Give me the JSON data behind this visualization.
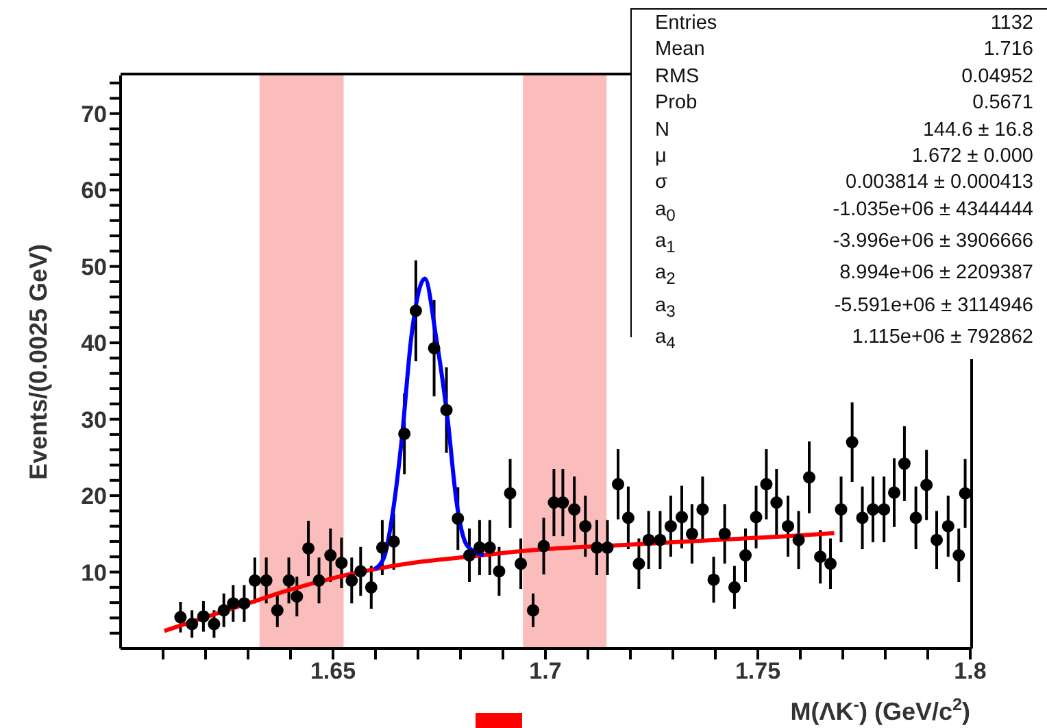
{
  "chart_data": {
    "type": "scatter",
    "xlabel": "M(ΛK$^{-}$) (GeV/c$^{2}$)",
    "ylabel": "Events/(0.0025 GeV)",
    "xlim": [
      1.6,
      1.8
    ],
    "ylim": [
      0,
      75
    ],
    "xticks": [
      {
        "value": 1.61,
        "label": null
      },
      {
        "value": 1.62,
        "label": null
      },
      {
        "value": 1.63,
        "label": null
      },
      {
        "value": 1.64,
        "label": null
      },
      1.65,
      {
        "value": 1.66,
        "label": null
      },
      {
        "value": 1.67,
        "label": null
      },
      {
        "value": 1.68,
        "label": null
      },
      {
        "value": 1.69,
        "label": null
      },
      1.7,
      {
        "value": 1.71,
        "label": null
      },
      {
        "value": 1.72,
        "label": null
      },
      {
        "value": 1.73,
        "label": null
      },
      {
        "value": 1.74,
        "label": null
      },
      1.75,
      {
        "value": 1.76,
        "label": null
      },
      {
        "value": 1.77,
        "label": null
      },
      {
        "value": 1.78,
        "label": null
      },
      {
        "value": 1.79,
        "label": null
      },
      1.8
    ],
    "yticks": [
      {
        "value": 2,
        "label": null
      },
      {
        "value": 4,
        "label": null
      },
      {
        "value": 6,
        "label": null
      },
      {
        "value": 8,
        "label": null
      },
      10,
      {
        "value": 12,
        "label": null
      },
      {
        "value": 14,
        "label": null
      },
      {
        "value": 16,
        "label": null
      },
      {
        "value": 18,
        "label": null
      },
      20,
      {
        "value": 22,
        "label": null
      },
      {
        "value": 24,
        "label": null
      },
      {
        "value": 26,
        "label": null
      },
      {
        "value": 28,
        "label": null
      },
      30,
      {
        "value": 32,
        "label": null
      },
      {
        "value": 34,
        "label": null
      },
      {
        "value": 36,
        "label": null
      },
      {
        "value": 38,
        "label": null
      },
      40,
      {
        "value": 42,
        "label": null
      },
      {
        "value": 44,
        "label": null
      },
      {
        "value": 46,
        "label": null
      },
      {
        "value": 48,
        "label": null
      },
      50,
      {
        "value": 52,
        "label": null
      },
      {
        "value": 54,
        "label": null
      },
      {
        "value": 56,
        "label": null
      },
      {
        "value": 58,
        "label": null
      },
      60,
      {
        "value": 62,
        "label": null
      },
      {
        "value": 64,
        "label": null
      },
      {
        "value": 66,
        "label": null
      },
      {
        "value": 68,
        "label": null
      },
      70,
      {
        "value": 72,
        "label": null
      },
      {
        "value": 74,
        "label": null
      }
    ],
    "line_style": "solid",
    "bands": [
      {
        "axis": "x",
        "from": 1.6327,
        "to": 1.6525,
        "color": "#fbbcbc"
      },
      {
        "axis": "x",
        "from": 1.6947,
        "to": 1.7144,
        "color": "#fbbcbc"
      }
    ],
    "series": [
      {
        "color": "#000000",
        "marker": "circle",
        "x": [
          1.6141,
          1.6168,
          1.6195,
          1.622,
          1.6243,
          1.6265,
          1.6291,
          1.6316,
          1.6343,
          1.6369,
          1.6396,
          1.6415,
          1.6442,
          1.6467,
          1.6494,
          1.652,
          1.6544,
          1.6565,
          1.659,
          1.6616,
          1.6643,
          1.6668,
          1.6695,
          1.6738,
          1.6767,
          1.6794,
          1.6821,
          1.6845,
          1.6869,
          1.6891,
          1.6917,
          1.6942,
          1.6971,
          1.6996,
          1.702,
          1.7041,
          1.7068,
          1.7094,
          1.7121,
          1.7146,
          1.7171,
          1.7195,
          1.722,
          1.7243,
          1.727,
          1.7295,
          1.7321,
          1.7345,
          1.737,
          1.7396,
          1.7422,
          1.7445,
          1.7471,
          1.7496,
          1.752,
          1.7544,
          1.7571,
          1.7596,
          1.7621,
          1.7647,
          1.7671,
          1.7696,
          1.7722,
          1.7746,
          1.7771,
          1.7797,
          1.7821,
          1.7845,
          1.7872,
          1.7897,
          1.7921,
          1.7948,
          1.7973,
          1.7988
        ],
        "values": [
          4.1,
          3.2,
          4.2,
          3.2,
          5.0,
          5.9,
          5.9,
          8.9,
          8.9,
          5.0,
          8.9,
          6.8,
          13.1,
          8.9,
          12.2,
          11.2,
          8.9,
          10.1,
          8.0,
          13.2,
          14.0,
          28.1,
          44.2,
          39.3,
          31.2,
          17.0,
          12.2,
          13.2,
          13.2,
          10.1,
          20.3,
          11.1,
          5.0,
          13.4,
          19.1,
          19.1,
          18.2,
          16.0,
          13.2,
          13.2,
          21.5,
          17.1,
          11.1,
          14.2,
          14.2,
          16.0,
          17.2,
          15.0,
          18.2,
          9.0,
          15.0,
          8.0,
          12.2,
          17.2,
          21.5,
          19.1,
          16.0,
          14.2,
          22.4,
          12.0,
          11.1,
          18.2,
          27.0,
          17.1,
          18.2,
          18.2,
          20.4,
          24.2,
          17.1,
          21.4,
          14.2,
          16.0,
          12.2,
          20.3
        ],
        "errors": [
          2,
          1.8,
          2,
          1.8,
          2.2,
          2.4,
          2.4,
          3,
          3,
          2.2,
          3,
          2.6,
          3.6,
          3,
          3.5,
          3.3,
          3,
          3.2,
          2.8,
          3.6,
          3.7,
          5.3,
          6.6,
          6.3,
          5.6,
          4.1,
          3.5,
          3.6,
          3.6,
          3.2,
          4.5,
          3.3,
          2.2,
          3.7,
          4.4,
          4.4,
          4.3,
          4,
          3.6,
          3.6,
          4.6,
          4.1,
          3.3,
          3.8,
          3.8,
          4,
          4.1,
          3.9,
          4.3,
          3,
          3.9,
          2.8,
          3.5,
          4.1,
          4.6,
          4.4,
          4,
          3.8,
          4.7,
          3.5,
          3.3,
          4.3,
          5.2,
          4.1,
          4.3,
          4.3,
          4.5,
          4.9,
          4.1,
          4.6,
          3.8,
          4,
          3.5,
          4.5
        ]
      },
      {
        "type": "line",
        "color": "#ff0000",
        "marker": "none",
        "x": [
          1.6103,
          1.62,
          1.63,
          1.64,
          1.65,
          1.66,
          1.67,
          1.68,
          1.69,
          1.7,
          1.72,
          1.74,
          1.76,
          1.768
        ],
        "values": [
          2.3,
          4.1,
          5.9,
          7.7,
          9.2,
          10.4,
          11.3,
          11.9,
          12.5,
          13.0,
          13.6,
          14.2,
          14.8,
          15.1
        ]
      },
      {
        "type": "line",
        "color": "#0000ff",
        "marker": "none",
        "x": [
          1.6598,
          1.662,
          1.6641,
          1.6662,
          1.6684,
          1.6716,
          1.6743,
          1.677,
          1.6791,
          1.6813,
          1.6835,
          1.6855
        ],
        "values": [
          10.4,
          11.9,
          17.9,
          27.5,
          40.6,
          48.4,
          40.6,
          29.9,
          19.1,
          13.7,
          12.6,
          12.2
        ]
      }
    ],
    "annotations": [
      "Entries 1132",
      "Mean 1.716",
      "RMS 0.04952",
      "Prob 0.5671",
      "N 144.6 ± 16.8",
      "μ 1.672 ± 0.000",
      "σ 0.003814 ± 0.000413",
      "a$_{0}$ -1.035e+06 ± 4344444",
      "a$_{1}$ -3.996e+06 ± 3906666",
      "a$_{2}$ 8.994e+06 ± 2209387",
      "a$_{3}$ -5.591e+06 ± 3114946",
      "a$_{4}$ 1.115e+06 ± 792862"
    ]
  }
}
